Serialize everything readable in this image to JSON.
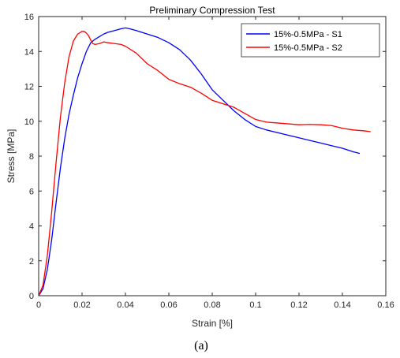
{
  "chart_data": {
    "type": "line",
    "title": "Preliminary Compression Test",
    "xlabel": "Strain [%]",
    "ylabel": "Stress [MPa]",
    "xlim": [
      0,
      0.16
    ],
    "ylim": [
      0,
      16
    ],
    "xticks": [
      0,
      0.02,
      0.04,
      0.06,
      0.08,
      0.1,
      0.12,
      0.14,
      0.16
    ],
    "xtick_labels": [
      "0",
      "0.02",
      "0.04",
      "0.06",
      "0.08",
      "0.1",
      "0.12",
      "0.14",
      "0.16"
    ],
    "yticks": [
      0,
      2,
      4,
      6,
      8,
      10,
      12,
      14,
      16
    ],
    "ytick_labels": [
      "0",
      "2",
      "4",
      "6",
      "8",
      "10",
      "12",
      "14",
      "16"
    ],
    "grid": false,
    "legend_position": "top-right",
    "series": [
      {
        "name": "15%-0.5MPa - S1",
        "color": "#0000ff",
        "x": [
          0,
          0.002,
          0.004,
          0.006,
          0.008,
          0.01,
          0.012,
          0.014,
          0.016,
          0.018,
          0.02,
          0.022,
          0.024,
          0.026,
          0.028,
          0.03,
          0.032,
          0.035,
          0.038,
          0.04,
          0.042,
          0.045,
          0.05,
          0.055,
          0.06,
          0.065,
          0.07,
          0.075,
          0.08,
          0.085,
          0.09,
          0.095,
          0.1,
          0.105,
          0.11,
          0.115,
          0.12,
          0.125,
          0.13,
          0.135,
          0.14,
          0.145,
          0.148
        ],
        "y": [
          0,
          0.4,
          1.5,
          3.2,
          5.3,
          7.3,
          9.0,
          10.4,
          11.5,
          12.5,
          13.3,
          14.0,
          14.5,
          14.7,
          14.85,
          15.0,
          15.1,
          15.2,
          15.3,
          15.35,
          15.3,
          15.2,
          15.0,
          14.8,
          14.5,
          14.1,
          13.5,
          12.7,
          11.8,
          11.2,
          10.6,
          10.1,
          9.7,
          9.5,
          9.35,
          9.2,
          9.05,
          8.9,
          8.75,
          8.6,
          8.45,
          8.25,
          8.15
        ]
      },
      {
        "name": "15%-0.5MPa - S2",
        "color": "#ff0000",
        "x": [
          0,
          0.002,
          0.004,
          0.006,
          0.008,
          0.01,
          0.012,
          0.014,
          0.016,
          0.018,
          0.02,
          0.021,
          0.022,
          0.023,
          0.024,
          0.025,
          0.026,
          0.028,
          0.03,
          0.032,
          0.035,
          0.038,
          0.04,
          0.045,
          0.05,
          0.055,
          0.06,
          0.065,
          0.07,
          0.075,
          0.08,
          0.085,
          0.09,
          0.095,
          0.1,
          0.105,
          0.11,
          0.115,
          0.12,
          0.125,
          0.13,
          0.135,
          0.14,
          0.145,
          0.15,
          0.153
        ],
        "y": [
          0,
          0.6,
          2.3,
          4.8,
          7.6,
          10.2,
          12.2,
          13.7,
          14.6,
          15.0,
          15.15,
          15.15,
          15.05,
          14.9,
          14.65,
          14.45,
          14.4,
          14.45,
          14.55,
          14.5,
          14.45,
          14.4,
          14.3,
          13.9,
          13.3,
          12.9,
          12.4,
          12.15,
          11.95,
          11.6,
          11.2,
          11.0,
          10.8,
          10.45,
          10.1,
          9.95,
          9.9,
          9.85,
          9.8,
          9.82,
          9.8,
          9.75,
          9.6,
          9.5,
          9.45,
          9.4
        ]
      }
    ]
  },
  "caption": "(a)"
}
